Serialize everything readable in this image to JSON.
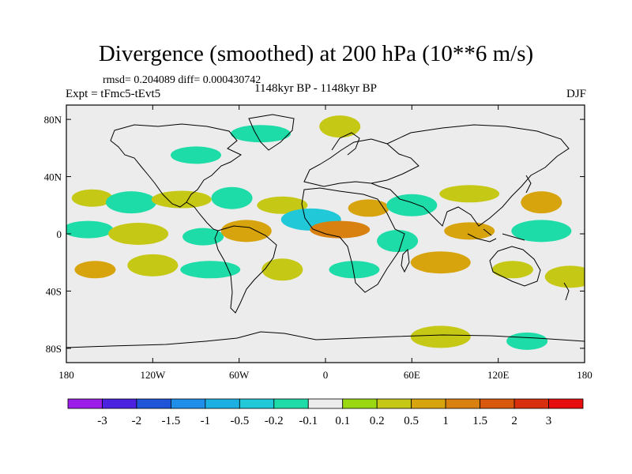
{
  "title": "Divergence (smoothed) at 200 hPa (10**6 m/s)",
  "stats": "rmsd= 0.204089  diff= 0.000430742",
  "experiment": "Expt = tFmc5-tEvt5",
  "period": "1148kyr BP - 1148kyr BP",
  "season": "DJF",
  "map": {
    "lon_range": [
      -180,
      180
    ],
    "lat_range": [
      -90,
      90
    ],
    "x_ticks": [
      {
        "lon": -180,
        "label": "180"
      },
      {
        "lon": -120,
        "label": "120W"
      },
      {
        "lon": -60,
        "label": "60W"
      },
      {
        "lon": 0,
        "label": "0"
      },
      {
        "lon": 60,
        "label": "60E"
      },
      {
        "lon": 120,
        "label": "120E"
      },
      {
        "lon": 180,
        "label": "180"
      }
    ],
    "y_ticks": [
      {
        "lat": 80,
        "label": "80N"
      },
      {
        "lat": 40,
        "label": "40N"
      },
      {
        "lat": 0,
        "label": "0"
      },
      {
        "lat": -40,
        "label": "40S"
      },
      {
        "lat": -80,
        "label": "80S"
      }
    ],
    "background_color": "#ececec"
  },
  "colorbar": {
    "colors": [
      "#9b1ee8",
      "#4a22e0",
      "#1f55d8",
      "#1e8ee8",
      "#1cb0e2",
      "#20c8d8",
      "#1edca8",
      "#ebebeb",
      "#9ad812",
      "#c6c816",
      "#d8a40e",
      "#d88010",
      "#d8580e",
      "#d8300e",
      "#e60e0e"
    ],
    "labels": [
      "-3",
      "-2",
      "-1.5",
      "-1",
      "-0.5",
      "-0.2",
      "-0.1",
      "0.1",
      "0.2",
      "0.5",
      "1",
      "1.5",
      "2",
      "3"
    ]
  },
  "anomalies": [
    {
      "lon": -162,
      "lat": 25,
      "value": 0.3
    },
    {
      "lon": -135,
      "lat": 22,
      "value": -0.2
    },
    {
      "lon": -100,
      "lat": 24,
      "value": 0.3
    },
    {
      "lon": -65,
      "lat": 25,
      "value": -0.2
    },
    {
      "lon": -30,
      "lat": 20,
      "value": 0.3
    },
    {
      "lon": -10,
      "lat": 10,
      "value": -0.4
    },
    {
      "lon": 30,
      "lat": 18,
      "value": 0.5
    },
    {
      "lon": 60,
      "lat": 20,
      "value": -0.2
    },
    {
      "lon": 100,
      "lat": 28,
      "value": 0.3
    },
    {
      "lon": 150,
      "lat": 22,
      "value": 0.5
    },
    {
      "lon": -165,
      "lat": 3,
      "value": -0.2
    },
    {
      "lon": -130,
      "lat": 0,
      "value": 0.3
    },
    {
      "lon": -85,
      "lat": -2,
      "value": -0.2
    },
    {
      "lon": -55,
      "lat": 2,
      "value": 0.6
    },
    {
      "lon": 10,
      "lat": 3,
      "value": 1.0
    },
    {
      "lon": 50,
      "lat": -5,
      "value": -0.2
    },
    {
      "lon": 100,
      "lat": 2,
      "value": 0.8
    },
    {
      "lon": 150,
      "lat": 2,
      "value": -0.2
    },
    {
      "lon": -160,
      "lat": -25,
      "value": 0.5
    },
    {
      "lon": -120,
      "lat": -22,
      "value": 0.3
    },
    {
      "lon": -80,
      "lat": -25,
      "value": -0.2
    },
    {
      "lon": -30,
      "lat": -25,
      "value": 0.3
    },
    {
      "lon": 20,
      "lat": -25,
      "value": -0.2
    },
    {
      "lon": 80,
      "lat": -20,
      "value": 0.5
    },
    {
      "lon": 130,
      "lat": -25,
      "value": 0.3
    },
    {
      "lon": 170,
      "lat": -30,
      "value": 0.3
    },
    {
      "lon": -45,
      "lat": 70,
      "value": -0.2
    },
    {
      "lon": 10,
      "lat": 75,
      "value": 0.2
    },
    {
      "lon": -90,
      "lat": 55,
      "value": -0.2
    },
    {
      "lon": 80,
      "lat": -72,
      "value": 0.3
    },
    {
      "lon": 140,
      "lat": -75,
      "value": -0.2
    }
  ]
}
